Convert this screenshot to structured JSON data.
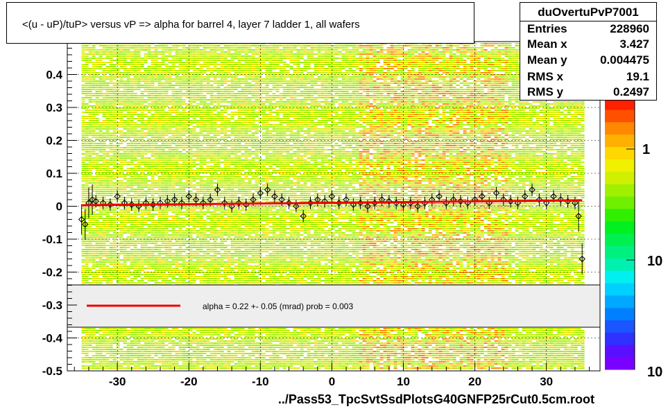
{
  "title": "<(u - uP)/tuP> versus   vP => alpha for barrel 4, layer 7 ladder 1, all wafers",
  "stats": {
    "name": "duOvertuPvP7001",
    "rows": [
      {
        "label": "Entries",
        "value": "228960"
      },
      {
        "label": "Mean x",
        "value": "3.427"
      },
      {
        "label": "Mean y",
        "value": "0.004475"
      },
      {
        "label": "RMS x",
        "value": "19.1"
      },
      {
        "label": "RMS y",
        "value": "0.2497"
      }
    ]
  },
  "legend": {
    "text": "alpha =    0.22 +-  0.05 (mrad) prob = 0.003",
    "line_color": "#ee0000"
  },
  "x_axis_title": "../Pass53_TpcSvtSsdPlotsG40GNFP25rCut0.5cm.root",
  "colorbar": {
    "labels": [
      "1",
      "10",
      "10"
    ],
    "colors": [
      "#7a00ff",
      "#5a10ff",
      "#3030ff",
      "#1a55ff",
      "#0080ff",
      "#00a8ff",
      "#00d0ff",
      "#00f0f0",
      "#00f0b0",
      "#00f080",
      "#00f050",
      "#00f020",
      "#30f000",
      "#70f000",
      "#a0f000",
      "#d0f000",
      "#f0f000",
      "#ffd800",
      "#ffb000",
      "#ff8800",
      "#ff5000",
      "#ff2000"
    ]
  },
  "chart_data": {
    "type": "scatter",
    "title": "<(u - uP)/tuP> versus   vP => alpha for barrel 4, layer 7 ladder 1, all wafers",
    "xlabel": "../Pass53_TpcSvtSsdPlotsG40GNFP25rCut0.5cm.root",
    "ylabel": "",
    "xlim": [
      -37,
      37.5
    ],
    "ylim": [
      -0.5,
      0.5
    ],
    "x_ticks": [
      -30,
      -20,
      -10,
      0,
      10,
      20,
      30
    ],
    "y_ticks": [
      0.4,
      0.3,
      0.2,
      0.1,
      0,
      -0.1,
      -0.2,
      -0.3,
      -0.4,
      -0.5
    ],
    "y_tick_labels": [
      "0.4",
      "0.3",
      "0.2",
      "0.1",
      "0",
      "-0.1",
      "-0.2",
      "-0.3",
      "-0.4",
      "-0.5"
    ],
    "x_tick_labels": [
      "-30",
      "-20",
      "-10",
      "0",
      "10",
      "20",
      "30"
    ],
    "fit_line": {
      "x": [
        -35,
        35
      ],
      "y": [
        0.003,
        0.018
      ],
      "color": "#ee0000"
    },
    "series": [
      {
        "x": [
          -35,
          -34.5,
          -34,
          -33.5,
          -33,
          -32,
          -31,
          -30,
          -29,
          -28,
          -27,
          -26,
          -25,
          -24,
          -23,
          -22,
          -21,
          -20,
          -19,
          -18,
          -17,
          -16,
          -15,
          -14,
          -13,
          -12,
          -11,
          -10,
          -9,
          -8,
          -7,
          -6,
          -5,
          -4,
          -3,
          -2,
          -1,
          0,
          1,
          2,
          3,
          4,
          5,
          6,
          7,
          8,
          9,
          10,
          11,
          12,
          13,
          14,
          15,
          16,
          17,
          18,
          19,
          20,
          21,
          22,
          23,
          24,
          25,
          26,
          27,
          28,
          29,
          30,
          31,
          32,
          33,
          34,
          34.5,
          35
        ],
        "y": [
          -0.04,
          -0.055,
          0.01,
          0.02,
          0.015,
          0.01,
          0.005,
          0.03,
          0.01,
          0.005,
          0.0,
          0.01,
          0.005,
          0.01,
          0.015,
          0.02,
          0.01,
          0.03,
          0.02,
          0.01,
          0.02,
          0.05,
          0.01,
          0.0,
          0.01,
          0.005,
          0.02,
          0.04,
          0.05,
          0.03,
          0.02,
          0.01,
          0.0,
          -0.03,
          0.01,
          0.02,
          0.015,
          0.03,
          0.01,
          0.02,
          0.005,
          0.01,
          0.0,
          0.01,
          0.02,
          0.015,
          0.01,
          0.005,
          0.01,
          0.0,
          0.01,
          0.02,
          0.03,
          0.01,
          0.02,
          0.015,
          0.01,
          0.02,
          0.03,
          0.01,
          0.04,
          0.02,
          0.015,
          0.01,
          0.03,
          0.05,
          0.02,
          0.01,
          0.03,
          0.02,
          0.015,
          0.01,
          -0.03,
          -0.16
        ]
      }
    ],
    "grid": true
  }
}
